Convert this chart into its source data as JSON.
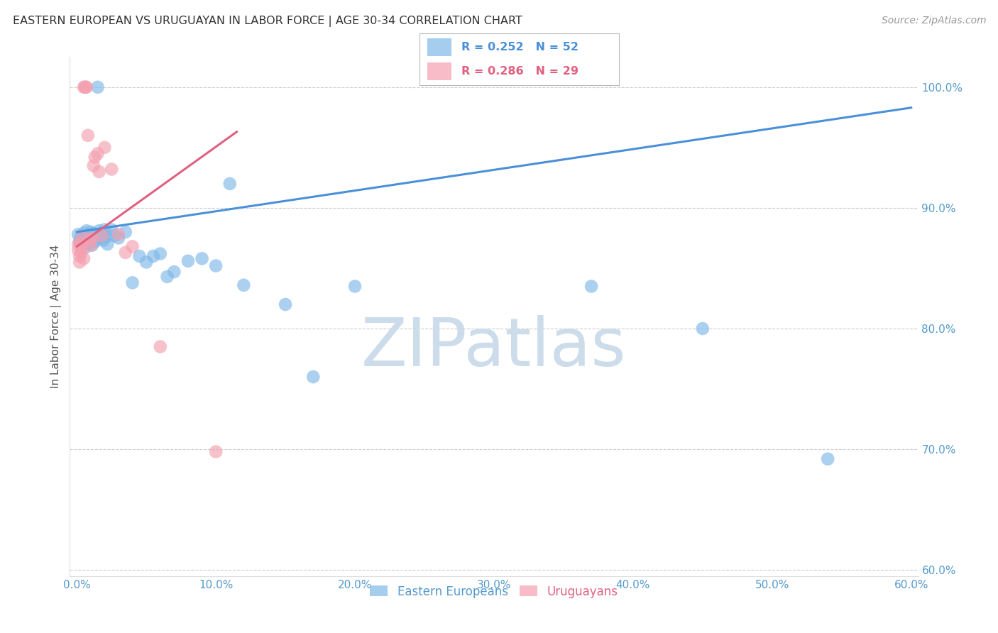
{
  "title": "EASTERN EUROPEAN VS URUGUAYAN IN LABOR FORCE | AGE 30-34 CORRELATION CHART",
  "source": "Source: ZipAtlas.com",
  "ylabel": "In Labor Force | Age 30-34",
  "legend_blue_r": "0.252",
  "legend_blue_n": "52",
  "legend_pink_r": "0.286",
  "legend_pink_n": "29",
  "legend_blue_label": "Eastern Europeans",
  "legend_pink_label": "Uruguayans",
  "xlim": [
    -0.005,
    0.605
  ],
  "ylim": [
    0.595,
    1.025
  ],
  "yticks": [
    0.6,
    0.7,
    0.8,
    0.9,
    1.0
  ],
  "ytick_labels": [
    "60.0%",
    "70.0%",
    "80.0%",
    "90.0%",
    "100.0%"
  ],
  "xticks": [
    0.0,
    0.1,
    0.2,
    0.3,
    0.4,
    0.5,
    0.6
  ],
  "xtick_labels": [
    "0.0%",
    "10.0%",
    "20.0%",
    "30.0%",
    "40.0%",
    "50.0%",
    "60.0%"
  ],
  "background_color": "#ffffff",
  "grid_color": "#cccccc",
  "blue_color": "#7eb8e8",
  "pink_color": "#f4a0b0",
  "blue_line_color": "#4a90d9",
  "pink_line_color": "#e06080",
  "title_color": "#333333",
  "axis_label_color": "#555555",
  "tick_color": "#5599cc",
  "source_color": "#999999",
  "blue_points_x": [
    0.001,
    0.002,
    0.003,
    0.003,
    0.004,
    0.005,
    0.006,
    0.006,
    0.007,
    0.007,
    0.008,
    0.008,
    0.009,
    0.01,
    0.01,
    0.011,
    0.011,
    0.012,
    0.012,
    0.013,
    0.014,
    0.015,
    0.015,
    0.016,
    0.017,
    0.018,
    0.019,
    0.02,
    0.021,
    0.022,
    0.025,
    0.027,
    0.03,
    0.035,
    0.04,
    0.045,
    0.05,
    0.055,
    0.06,
    0.065,
    0.07,
    0.08,
    0.09,
    0.1,
    0.11,
    0.12,
    0.15,
    0.17,
    0.2,
    0.37,
    0.45,
    0.54
  ],
  "blue_points_y": [
    0.878,
    0.872,
    0.876,
    0.871,
    0.875,
    0.879,
    0.873,
    0.867,
    0.875,
    0.881,
    0.87,
    0.876,
    0.874,
    0.873,
    0.88,
    0.878,
    0.869,
    0.874,
    0.879,
    0.872,
    0.876,
    1.0,
    0.877,
    0.881,
    0.875,
    0.879,
    0.873,
    0.882,
    0.876,
    0.87,
    0.882,
    0.877,
    0.875,
    0.88,
    0.838,
    0.86,
    0.855,
    0.86,
    0.862,
    0.843,
    0.847,
    0.856,
    0.858,
    0.852,
    0.92,
    0.836,
    0.82,
    0.76,
    0.835,
    0.835,
    0.8,
    0.692
  ],
  "pink_points_x": [
    0.001,
    0.001,
    0.002,
    0.002,
    0.003,
    0.003,
    0.004,
    0.004,
    0.005,
    0.005,
    0.006,
    0.006,
    0.007,
    0.008,
    0.009,
    0.01,
    0.011,
    0.012,
    0.013,
    0.015,
    0.016,
    0.018,
    0.02,
    0.025,
    0.03,
    0.035,
    0.04,
    0.06,
    0.1
  ],
  "pink_points_y": [
    0.87,
    0.865,
    0.86,
    0.855,
    0.87,
    0.863,
    0.876,
    0.868,
    0.858,
    1.0,
    1.0,
    1.0,
    1.0,
    0.96,
    0.873,
    0.869,
    0.875,
    0.935,
    0.942,
    0.945,
    0.93,
    0.877,
    0.95,
    0.932,
    0.878,
    0.863,
    0.868,
    0.785,
    0.698
  ],
  "blue_trend_x": [
    0.0,
    0.6
  ],
  "blue_trend_y": [
    0.88,
    0.983
  ],
  "pink_trend_x": [
    0.0,
    0.115
  ],
  "pink_trend_y": [
    0.868,
    0.963
  ],
  "watermark_zip": "ZIP",
  "watermark_atlas": "atlas",
  "watermark_color": "#ccdcea",
  "watermark_fontsize": 68
}
